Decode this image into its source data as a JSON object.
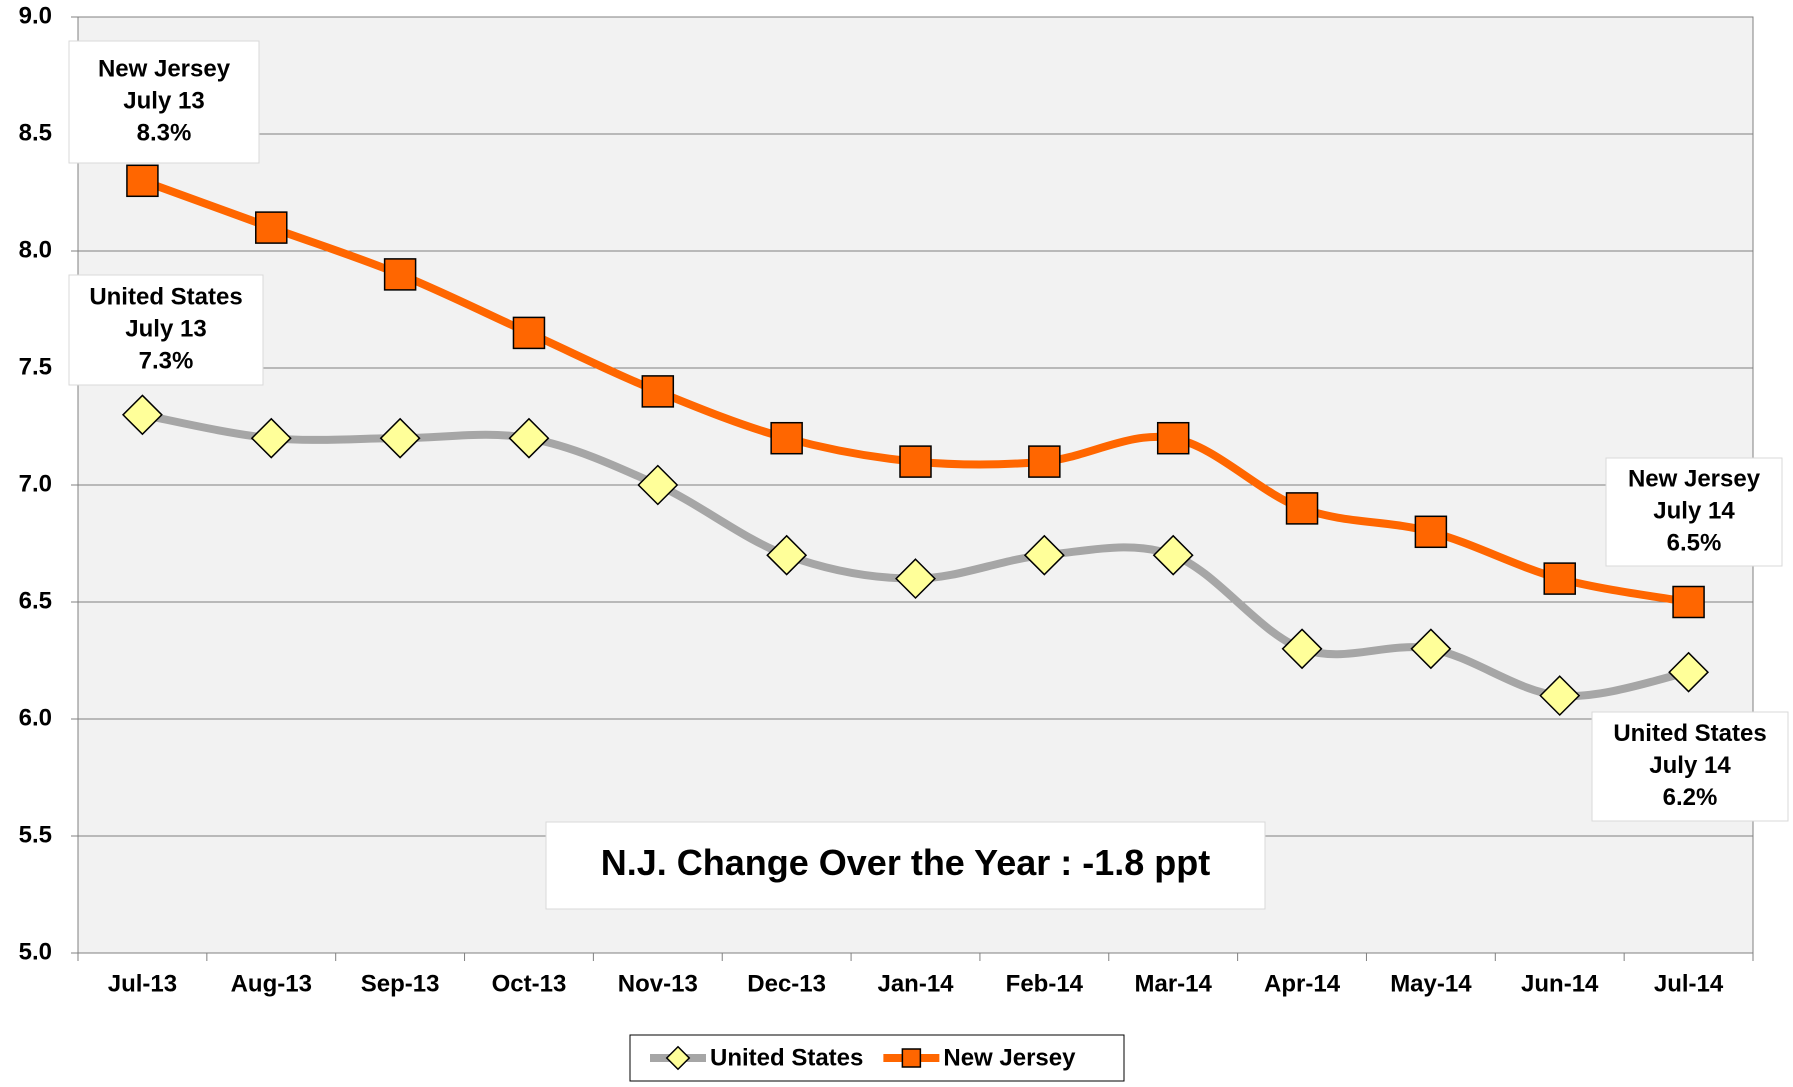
{
  "chart_data": {
    "type": "line",
    "categories": [
      "Jul-13",
      "Aug-13",
      "Sep-13",
      "Oct-13",
      "Nov-13",
      "Dec-13",
      "Jan-14",
      "Feb-14",
      "Mar-14",
      "Apr-14",
      "May-14",
      "Jun-14",
      "Jul-14"
    ],
    "series": [
      {
        "name": "United States",
        "color": "#a6a6a6",
        "marker_color": "#ffff99",
        "marker": "diamond",
        "values": [
          7.3,
          7.2,
          7.2,
          7.2,
          7.0,
          6.7,
          6.6,
          6.7,
          6.7,
          6.3,
          6.3,
          6.1,
          6.2
        ]
      },
      {
        "name": "New Jersey",
        "color": "#ff6600",
        "marker_color": "#ff6600",
        "marker": "square",
        "values": [
          8.3,
          8.1,
          7.9,
          7.65,
          7.4,
          7.2,
          7.1,
          7.1,
          7.2,
          6.9,
          6.8,
          6.6,
          6.5
        ]
      }
    ],
    "ylim": [
      5.0,
      9.0
    ],
    "yticks": [
      {
        "value": 5,
        "label": "5.0"
      },
      {
        "value": 5.5,
        "label": "5.5"
      },
      {
        "value": 6,
        "label": "6.0"
      },
      {
        "value": 6.5,
        "label": "6.5"
      },
      {
        "value": 7,
        "label": "7.0"
      },
      {
        "value": 7.5,
        "label": "7.5"
      },
      {
        "value": 8,
        "label": "8.0"
      },
      {
        "value": 8.5,
        "label": "8.5"
      },
      {
        "value": 9,
        "label": "9.0"
      }
    ],
    "grid": true,
    "legend": "bottom",
    "annotations": [
      {
        "lines": [
          "New Jersey",
          "July 13",
          "8.3%"
        ]
      },
      {
        "lines": [
          "United States",
          "July 13",
          "7.3%"
        ]
      },
      {
        "lines": [
          "New Jersey",
          "July 14",
          "6.5%"
        ]
      },
      {
        "lines": [
          "United States",
          "July 14",
          "6.2%"
        ]
      },
      {
        "lines": [
          "N.J. Change Over the Year : -1.8 ppt"
        ]
      }
    ]
  }
}
